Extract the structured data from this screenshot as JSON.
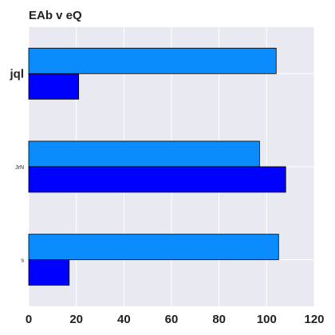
{
  "chart_data": {
    "type": "bar",
    "orientation": "horizontal",
    "title": "EAb v eQ",
    "xlabel": "",
    "ylabel": "",
    "categories": [
      "jql",
      "JrN",
      "s"
    ],
    "series": [
      {
        "color": "#0a8cff",
        "values": [
          104,
          97,
          105
        ]
      },
      {
        "color": "#0000ff",
        "values": [
          21,
          108,
          17
        ]
      }
    ],
    "xlim": [
      0,
      120
    ],
    "xticks": [
      0,
      20,
      40,
      60,
      80,
      100,
      120
    ],
    "grid": true,
    "background": "#e9e9f1"
  }
}
